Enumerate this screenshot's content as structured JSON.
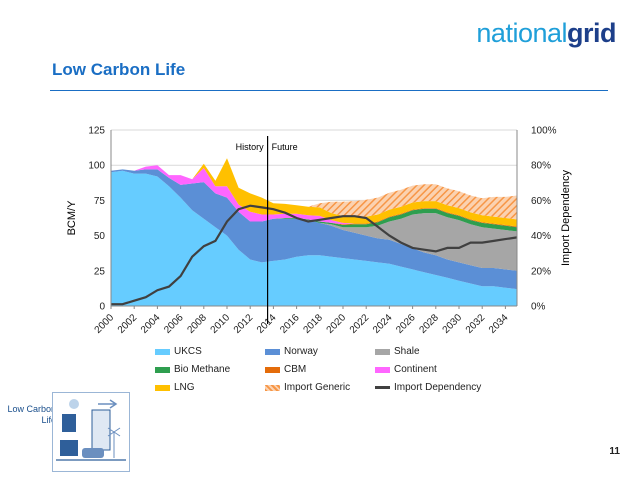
{
  "header": {
    "logo_light": "national",
    "logo_bold": "grid",
    "title": "Low Carbon Life"
  },
  "footer": {
    "caption": "Low Carbon Life",
    "page_number": "11"
  },
  "chart_data": {
    "type": "area",
    "title": "",
    "ylabel": "BCM/Y",
    "y2label": "Import Dependency",
    "ylim": [
      0,
      125
    ],
    "y2lim": [
      0,
      100
    ],
    "yticks": [
      0,
      25,
      50,
      75,
      100,
      125
    ],
    "y2ticks": [
      "0%",
      "20%",
      "40%",
      "60%",
      "80%",
      "100%"
    ],
    "x": [
      2000,
      2001,
      2002,
      2003,
      2004,
      2005,
      2006,
      2007,
      2008,
      2009,
      2010,
      2011,
      2012,
      2013,
      2014,
      2015,
      2016,
      2017,
      2018,
      2019,
      2020,
      2021,
      2022,
      2023,
      2024,
      2025,
      2026,
      2027,
      2028,
      2029,
      2030,
      2031,
      2032,
      2033,
      2034,
      2035
    ],
    "xticks": [
      "2000",
      "2002",
      "2004",
      "2006",
      "2008",
      "2010",
      "2012",
      "2014",
      "2016",
      "2018",
      "2020",
      "2022",
      "2024",
      "2026",
      "2028",
      "2030",
      "2032",
      "2034"
    ],
    "annotations": {
      "history_label": "History",
      "future_label": "Future",
      "divider_x": 2013.5
    },
    "series": [
      {
        "name": "UKCS",
        "color": "#66ccff",
        "values": [
          95,
          96,
          94,
          94,
          92,
          85,
          77,
          68,
          62,
          56,
          50,
          40,
          33,
          31,
          32,
          33,
          35,
          36,
          36,
          35,
          34,
          33,
          32,
          31,
          30,
          28,
          26,
          24,
          22,
          20,
          18,
          16,
          14,
          14,
          13,
          12
        ]
      },
      {
        "name": "Norway",
        "color": "#5b8fd6",
        "values": [
          1,
          1,
          2,
          3,
          5,
          6,
          9,
          19,
          26,
          24,
          27,
          27,
          27,
          29,
          30,
          29,
          27,
          25,
          23,
          22,
          20,
          19,
          18,
          17,
          17,
          16,
          15,
          14,
          14,
          13,
          13,
          13,
          13,
          13,
          13,
          13
        ]
      },
      {
        "name": "Shale",
        "color": "#a6a6a6",
        "values": [
          0,
          0,
          0,
          0,
          0,
          0,
          0,
          0,
          0,
          0,
          0,
          0,
          0,
          0,
          0,
          0,
          0,
          0,
          0,
          1,
          2,
          4,
          6,
          9,
          13,
          18,
          24,
          28,
          30,
          30,
          30,
          29,
          29,
          28,
          28,
          28
        ]
      },
      {
        "name": "Bio Methane",
        "color": "#2e9e4f",
        "values": [
          0,
          0,
          0,
          0,
          0,
          0,
          0,
          0,
          0,
          0,
          0,
          0,
          0,
          0,
          0,
          0.5,
          0.5,
          0.5,
          1,
          1,
          1.5,
          2,
          2,
          2.5,
          3,
          3,
          3,
          3,
          3,
          3,
          3,
          3,
          3,
          3,
          3,
          3
        ]
      },
      {
        "name": "CBM",
        "color": "#e46c0a",
        "values": [
          0,
          0,
          0,
          0,
          0,
          0,
          0,
          0,
          0,
          0,
          0,
          0,
          0,
          0,
          0,
          0,
          0,
          0,
          0,
          0,
          0.5,
          0.5,
          0.5,
          0.5,
          0.5,
          0.5,
          0.5,
          0.5,
          0.5,
          0.5,
          0.5,
          0.5,
          0.5,
          0.5,
          0.5,
          0.5
        ]
      },
      {
        "name": "Continent",
        "color": "#ff66ff",
        "values": [
          0,
          0,
          0,
          2,
          3,
          2,
          7,
          3,
          10,
          5,
          8,
          5,
          7,
          5,
          3,
          3,
          3,
          3,
          4,
          2,
          1,
          0,
          0,
          0,
          0,
          0,
          0,
          0,
          0,
          0,
          0,
          0,
          0,
          0,
          0,
          0
        ]
      },
      {
        "name": "LNG",
        "color": "#ffc000",
        "values": [
          0,
          0,
          0,
          0,
          0,
          0,
          0,
          0,
          3,
          4,
          20,
          12,
          13,
          12,
          8,
          7,
          6,
          6,
          6,
          5,
          5,
          5,
          5,
          5,
          5,
          5,
          5,
          5,
          5,
          5,
          5,
          5,
          5,
          5,
          5,
          5
        ]
      },
      {
        "name": "Import Generic",
        "color": "#f79646",
        "hatched": true,
        "values": [
          0,
          0,
          0,
          0,
          0,
          0,
          0,
          0,
          0,
          0,
          0,
          0,
          0,
          0,
          0,
          0,
          0,
          0,
          3,
          8,
          10,
          11,
          12,
          12,
          12,
          12,
          12,
          12,
          12,
          12,
          12,
          12,
          12,
          14,
          15,
          17
        ]
      },
      {
        "name": "Import Dependency",
        "color": "#404040",
        "line": true,
        "axis": "right",
        "values": [
          1,
          1,
          3,
          5,
          9,
          11,
          17,
          28,
          34,
          37,
          48,
          55,
          57,
          56,
          55,
          53,
          50,
          48,
          49,
          50,
          51,
          51,
          50,
          45,
          40,
          36,
          33,
          32,
          31,
          33,
          33,
          36,
          36,
          37,
          38,
          39
        ]
      }
    ]
  }
}
